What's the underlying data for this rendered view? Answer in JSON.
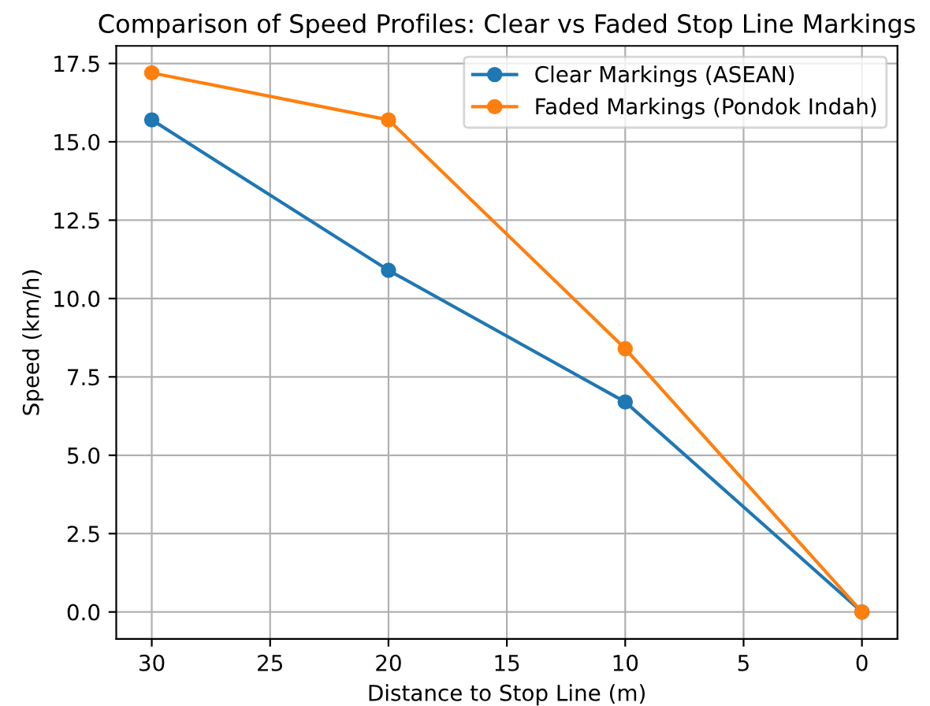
{
  "chart_data": {
    "type": "line",
    "title": "Comparison of Speed Profiles: Clear vs Faded Stop Line Markings",
    "xlabel": "Distance to Stop Line (m)",
    "ylabel": "Speed (km/h)",
    "x": [
      30,
      20,
      10,
      0
    ],
    "series": [
      {
        "name": "Clear Markings (ASEAN)",
        "color": "#1f77b4",
        "values": [
          15.7,
          10.9,
          6.7,
          0
        ]
      },
      {
        "name": "Faded Markings (Pondok Indah)",
        "color": "#ff7f0e",
        "values": [
          17.2,
          15.7,
          8.4,
          0
        ]
      }
    ],
    "xlim": [
      31.5,
      -1.5
    ],
    "xticks": [
      30,
      25,
      20,
      15,
      10,
      5,
      0
    ],
    "ylim": [
      -0.86,
      18.06
    ],
    "yticks": [
      {
        "value": 0,
        "label": "0.0"
      },
      2.5,
      {
        "value": 5,
        "label": "5.0"
      },
      7.5,
      {
        "value": 10,
        "label": "10.0"
      },
      12.5,
      {
        "value": 15,
        "label": "15.0"
      },
      17.5
    ],
    "grid": true,
    "legend": "top right",
    "marker": "circle",
    "line_style": "solid"
  }
}
